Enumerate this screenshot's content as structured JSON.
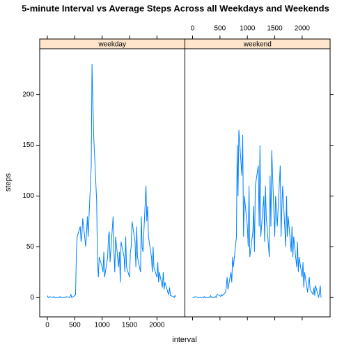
{
  "chart_data": {
    "type": "line",
    "title": "5-minute Interval vs Average Steps Across all Weekdays and Weekends",
    "x_label": "interval",
    "y_label": "steps",
    "x": [
      0,
      15,
      30,
      45,
      100,
      115,
      130,
      145,
      200,
      215,
      230,
      245,
      300,
      315,
      330,
      345,
      400,
      415,
      430,
      445,
      500,
      515,
      530,
      545,
      600,
      615,
      630,
      645,
      700,
      715,
      730,
      745,
      800,
      815,
      830,
      845,
      900,
      915,
      930,
      945,
      1000,
      1015,
      1030,
      1045,
      1100,
      1115,
      1130,
      1145,
      1200,
      1215,
      1230,
      1245,
      1300,
      1315,
      1330,
      1345,
      1400,
      1415,
      1430,
      1445,
      1500,
      1515,
      1530,
      1545,
      1600,
      1615,
      1630,
      1645,
      1700,
      1715,
      1730,
      1745,
      1800,
      1815,
      1830,
      1845,
      1900,
      1915,
      1930,
      1945,
      2000,
      2015,
      2030,
      2045,
      2100,
      2115,
      2130,
      2145,
      2200,
      2215,
      2230,
      2245,
      2300,
      2315,
      2330,
      2345
    ],
    "series": [
      {
        "name": "weekday",
        "color": "#0080ff",
        "values": [
          2,
          0,
          0,
          1,
          0,
          1,
          0,
          0,
          0,
          0,
          1,
          0,
          0,
          0,
          0,
          1,
          0,
          1,
          3,
          0,
          2,
          3,
          45,
          60,
          70,
          55,
          62,
          78,
          50,
          65,
          80,
          60,
          130,
          230,
          195,
          160,
          95,
          35,
          20,
          40,
          30,
          25,
          45,
          20,
          40,
          60,
          65,
          35,
          80,
          45,
          25,
          60,
          30,
          45,
          15,
          55,
          40,
          25,
          60,
          30,
          20,
          45,
          50,
          75,
          55,
          30,
          70,
          40,
          25,
          80,
          50,
          45,
          110,
          75,
          90,
          60,
          40,
          25,
          50,
          30,
          20,
          35,
          15,
          25,
          10,
          25,
          8,
          15,
          5,
          3,
          10,
          2,
          1,
          0,
          2,
          1
        ]
      },
      {
        "name": "weekend",
        "color": "#0080ff",
        "values": [
          0,
          0,
          0,
          1,
          0,
          0,
          0,
          0,
          0,
          1,
          0,
          0,
          0,
          0,
          2,
          0,
          0,
          1,
          0,
          3,
          2,
          1,
          3,
          2,
          5,
          10,
          20,
          8,
          25,
          15,
          40,
          30,
          60,
          150,
          100,
          165,
          120,
          160,
          60,
          100,
          70,
          50,
          110,
          40,
          65,
          90,
          45,
          110,
          130,
          70,
          150,
          60,
          100,
          55,
          110,
          80,
          40,
          120,
          70,
          145,
          60,
          100,
          85,
          70,
          130,
          60,
          90,
          110,
          50,
          100,
          60,
          80,
          45,
          70,
          40,
          60,
          30,
          55,
          25,
          40,
          20,
          35,
          10,
          25,
          5,
          15,
          20,
          8,
          3,
          10,
          2,
          12,
          0,
          5,
          12,
          0
        ]
      }
    ],
    "xlim": [
      -140,
      2510
    ],
    "xticks": [
      0,
      500,
      1000,
      1500,
      2000
    ],
    "ylim": [
      -19,
      245
    ],
    "yticks": [
      0,
      50,
      100,
      150,
      200
    ]
  }
}
